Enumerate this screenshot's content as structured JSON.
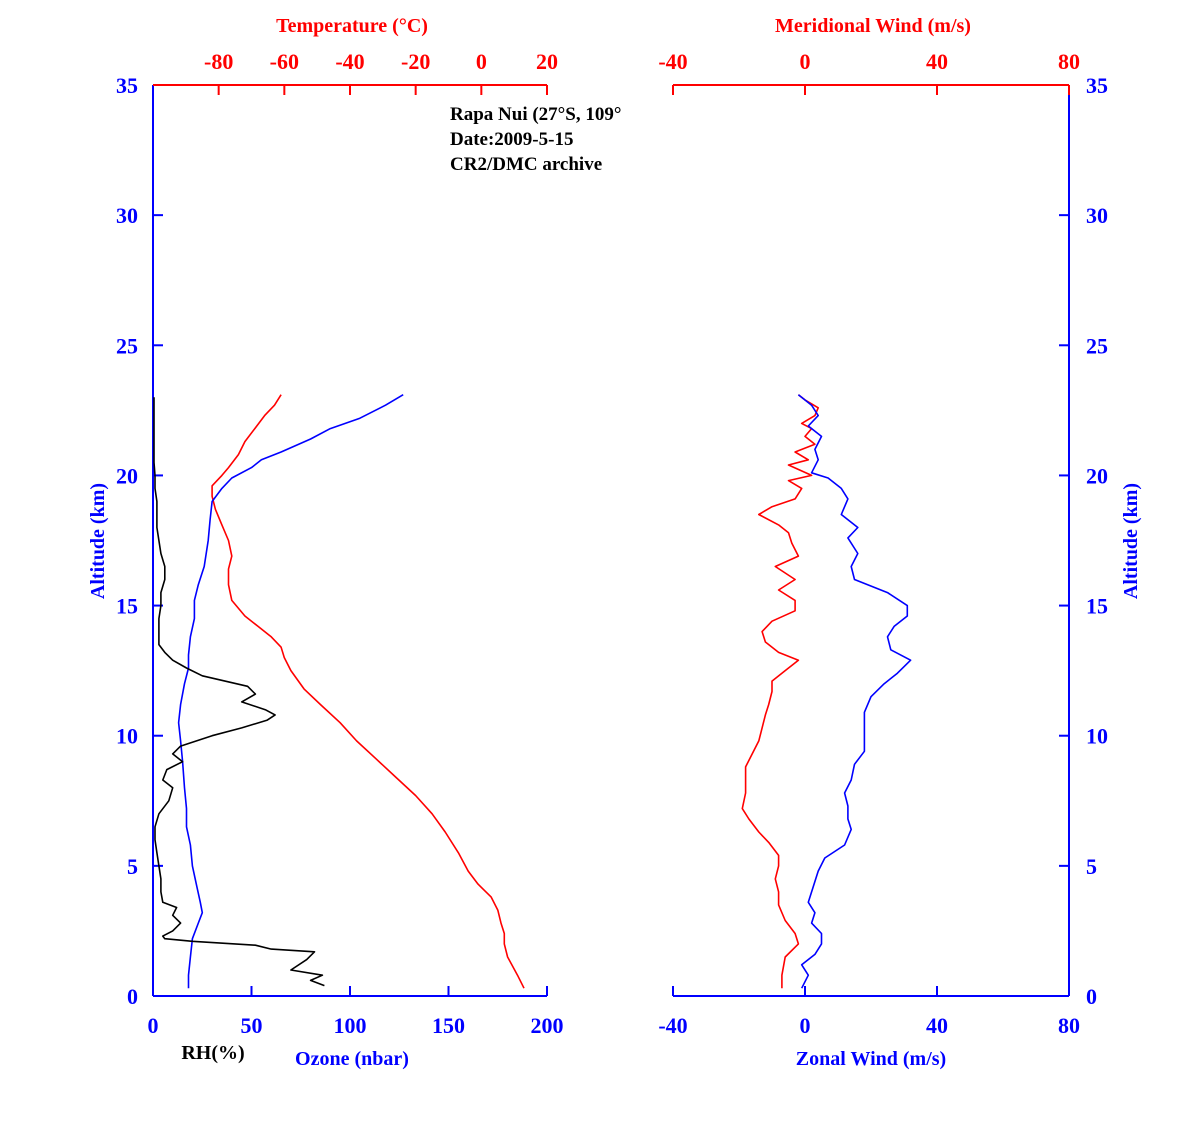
{
  "annotation": {
    "line1": "Rapa Nui (27°S, 109°",
    "line2": "Date:2009-5-15",
    "line3": "CR2/DMC archive"
  },
  "colors": {
    "blue": "#0000ff",
    "red": "#ff0000",
    "black": "#000000"
  },
  "chart_data": [
    {
      "type": "line",
      "panel": "left",
      "ylabel": "Altitude (km)",
      "ylim": [
        0,
        35
      ],
      "yticks": [
        "0",
        "5",
        "10",
        "15",
        "20",
        "25",
        "30",
        "35"
      ],
      "top_axis": {
        "label": "Temperature (°C)",
        "lim": [
          -100,
          20
        ],
        "ticks": [
          "-80",
          "-60",
          "-40",
          "-20",
          "0",
          "20"
        ]
      },
      "bottom_axis": {
        "label_rh": "RH(%)",
        "label_ozone": "Ozone (nbar)",
        "lim": [
          0,
          200
        ],
        "ticks": [
          "0",
          "50",
          "100",
          "150",
          "200"
        ]
      },
      "series": [
        {
          "axis": "top",
          "color": "red",
          "points": [
            [
              13,
              0.3
            ],
            [
              11,
              0.8
            ],
            [
              8,
              1.5
            ],
            [
              7,
              2.0
            ],
            [
              7,
              2.4
            ],
            [
              6,
              2.8
            ],
            [
              5,
              3.3
            ],
            [
              3,
              3.8
            ],
            [
              -1,
              4.3
            ],
            [
              -4,
              4.8
            ],
            [
              -7,
              5.5
            ],
            [
              -11,
              6.3
            ],
            [
              -15,
              7.0
            ],
            [
              -20,
              7.7
            ],
            [
              -26,
              8.4
            ],
            [
              -32,
              9.1
            ],
            [
              -38,
              9.8
            ],
            [
              -43,
              10.5
            ],
            [
              -49,
              11.2
            ],
            [
              -54,
              11.8
            ],
            [
              -58,
              12.5
            ],
            [
              -60,
              13.0
            ],
            [
              -61,
              13.4
            ],
            [
              -64,
              13.8
            ],
            [
              -68,
              14.2
            ],
            [
              -72,
              14.6
            ],
            [
              -76,
              15.2
            ],
            [
              -77,
              15.8
            ],
            [
              -77,
              16.4
            ],
            [
              -76,
              16.9
            ],
            [
              -77,
              17.5
            ],
            [
              -79,
              18.1
            ],
            [
              -81,
              18.7
            ],
            [
              -82,
              19.2
            ],
            [
              -82,
              19.6
            ],
            [
              -79,
              20.0
            ],
            [
              -77,
              20.3
            ],
            [
              -74,
              20.8
            ],
            [
              -72,
              21.3
            ],
            [
              -69,
              21.8
            ],
            [
              -66,
              22.3
            ],
            [
              -63,
              22.7
            ],
            [
              -61,
              23.1
            ]
          ]
        },
        {
          "axis": "bottom",
          "color": "blue",
          "points": [
            [
              18,
              0.3
            ],
            [
              18,
              0.8
            ],
            [
              19,
              1.5
            ],
            [
              20,
              2.2
            ],
            [
              23,
              2.8
            ],
            [
              25,
              3.2
            ],
            [
              24,
              3.6
            ],
            [
              22,
              4.3
            ],
            [
              20,
              5.0
            ],
            [
              19,
              5.8
            ],
            [
              17,
              6.5
            ],
            [
              17,
              7.2
            ],
            [
              16,
              8.0
            ],
            [
              15,
              9.0
            ],
            [
              14,
              9.8
            ],
            [
              13,
              10.5
            ],
            [
              14,
              11.2
            ],
            [
              16,
              12.0
            ],
            [
              18,
              12.6
            ],
            [
              18,
              13.1
            ],
            [
              19,
              13.8
            ],
            [
              21,
              14.5
            ],
            [
              21,
              15.2
            ],
            [
              23,
              15.8
            ],
            [
              26,
              16.5
            ],
            [
              28,
              17.5
            ],
            [
              29,
              18.3
            ],
            [
              30,
              19.0
            ],
            [
              35,
              19.5
            ],
            [
              40,
              19.9
            ],
            [
              50,
              20.3
            ],
            [
              55,
              20.6
            ],
            [
              65,
              20.9
            ],
            [
              80,
              21.4
            ],
            [
              90,
              21.8
            ],
            [
              105,
              22.2
            ],
            [
              118,
              22.7
            ],
            [
              127,
              23.1
            ]
          ]
        },
        {
          "axis": "bottom",
          "color": "black",
          "points": [
            [
              87,
              0.4
            ],
            [
              80,
              0.6
            ],
            [
              86,
              0.8
            ],
            [
              70,
              1.0
            ],
            [
              78,
              1.4
            ],
            [
              82,
              1.7
            ],
            [
              60,
              1.8
            ],
            [
              52,
              1.95
            ],
            [
              20,
              2.1
            ],
            [
              6,
              2.2
            ],
            [
              5,
              2.3
            ],
            [
              10,
              2.5
            ],
            [
              14,
              2.8
            ],
            [
              10,
              3.1
            ],
            [
              12,
              3.4
            ],
            [
              5,
              3.6
            ],
            [
              4,
              4.0
            ],
            [
              4,
              4.5
            ],
            [
              3,
              5.0
            ],
            [
              2,
              5.5
            ],
            [
              1,
              6.0
            ],
            [
              1,
              6.5
            ],
            [
              3,
              7.0
            ],
            [
              8,
              7.5
            ],
            [
              10,
              8.0
            ],
            [
              5,
              8.3
            ],
            [
              7,
              8.7
            ],
            [
              15,
              9.0
            ],
            [
              10,
              9.3
            ],
            [
              14,
              9.6
            ],
            [
              30,
              10.0
            ],
            [
              45,
              10.3
            ],
            [
              58,
              10.6
            ],
            [
              62,
              10.8
            ],
            [
              57,
              11.0
            ],
            [
              45,
              11.3
            ],
            [
              52,
              11.6
            ],
            [
              48,
              11.9
            ],
            [
              25,
              12.3
            ],
            [
              17,
              12.6
            ],
            [
              10,
              12.9
            ],
            [
              6,
              13.2
            ],
            [
              3,
              13.5
            ],
            [
              3,
              14.0
            ],
            [
              3,
              14.5
            ],
            [
              4,
              15.0
            ],
            [
              4,
              15.5
            ],
            [
              6,
              16.0
            ],
            [
              6,
              16.5
            ],
            [
              4,
              17.0
            ],
            [
              3,
              17.5
            ],
            [
              2,
              18.0
            ],
            [
              2,
              18.5
            ],
            [
              2,
              19.0
            ],
            [
              1,
              19.5
            ],
            [
              1,
              20.0
            ],
            [
              0.5,
              20.5
            ],
            [
              0.5,
              21.0
            ],
            [
              0.5,
              22.0
            ],
            [
              0.5,
              23.0
            ]
          ]
        }
      ]
    },
    {
      "type": "line",
      "panel": "right",
      "ylabel": "Altitude (km)",
      "ylim": [
        0,
        35
      ],
      "yticks": [
        "0",
        "5",
        "10",
        "15",
        "20",
        "25",
        "30",
        "35"
      ],
      "top_axis": {
        "label": "Meridional Wind (m/s)",
        "lim": [
          -40,
          80
        ],
        "ticks": [
          "-40",
          "0",
          "40",
          "80"
        ]
      },
      "bottom_axis": {
        "label": "Zonal Wind (m/s)",
        "lim": [
          -40,
          80
        ],
        "ticks": [
          "-40",
          "0",
          "40",
          "80"
        ]
      },
      "series": [
        {
          "axis": "top",
          "color": "red",
          "points": [
            [
              -7,
              0.3
            ],
            [
              -7,
              0.8
            ],
            [
              -6,
              1.5
            ],
            [
              -2,
              2.0
            ],
            [
              -3,
              2.4
            ],
            [
              -6,
              2.9
            ],
            [
              -8,
              3.5
            ],
            [
              -8,
              4.0
            ],
            [
              -9,
              4.5
            ],
            [
              -8,
              5.0
            ],
            [
              -8,
              5.4
            ],
            [
              -11,
              5.9
            ],
            [
              -14,
              6.3
            ],
            [
              -17,
              6.8
            ],
            [
              -19,
              7.2
            ],
            [
              -18,
              7.8
            ],
            [
              -18,
              8.3
            ],
            [
              -18,
              8.8
            ],
            [
              -16,
              9.3
            ],
            [
              -14,
              9.8
            ],
            [
              -13,
              10.3
            ],
            [
              -12,
              10.8
            ],
            [
              -11,
              11.2
            ],
            [
              -10,
              11.7
            ],
            [
              -10,
              12.1
            ],
            [
              -6,
              12.5
            ],
            [
              -2,
              12.9
            ],
            [
              -8,
              13.2
            ],
            [
              -12,
              13.6
            ],
            [
              -13,
              14.0
            ],
            [
              -10,
              14.4
            ],
            [
              -3,
              14.8
            ],
            [
              -3,
              15.2
            ],
            [
              -8,
              15.6
            ],
            [
              -3,
              16.0
            ],
            [
              -9,
              16.5
            ],
            [
              -2,
              16.9
            ],
            [
              -4,
              17.4
            ],
            [
              -5,
              17.8
            ],
            [
              -8,
              18.1
            ],
            [
              -14,
              18.5
            ],
            [
              -10,
              18.8
            ],
            [
              -3,
              19.1
            ],
            [
              -1,
              19.5
            ],
            [
              -5,
              19.8
            ],
            [
              2,
              20.0
            ],
            [
              -5,
              20.4
            ],
            [
              1,
              20.6
            ],
            [
              -3,
              20.9
            ],
            [
              3,
              21.2
            ],
            [
              0,
              21.5
            ],
            [
              2,
              21.8
            ],
            [
              -1,
              22.0
            ],
            [
              3,
              22.3
            ],
            [
              4,
              22.6
            ],
            [
              0,
              22.9
            ],
            [
              -2,
              23.1
            ]
          ]
        },
        {
          "axis": "bottom",
          "color": "blue",
          "points": [
            [
              -1,
              0.3
            ],
            [
              1,
              0.8
            ],
            [
              -1,
              1.2
            ],
            [
              3,
              1.6
            ],
            [
              5,
              2.0
            ],
            [
              5,
              2.4
            ],
            [
              2,
              2.8
            ],
            [
              3,
              3.2
            ],
            [
              1,
              3.6
            ],
            [
              2,
              4.0
            ],
            [
              3,
              4.4
            ],
            [
              4,
              4.8
            ],
            [
              6,
              5.3
            ],
            [
              12,
              5.8
            ],
            [
              14,
              6.4
            ],
            [
              13,
              6.8
            ],
            [
              13,
              7.3
            ],
            [
              12,
              7.8
            ],
            [
              14,
              8.3
            ],
            [
              15,
              8.9
            ],
            [
              18,
              9.4
            ],
            [
              18,
              10.0
            ],
            [
              18,
              10.5
            ],
            [
              18,
              10.9
            ],
            [
              20,
              11.5
            ],
            [
              24,
              12.0
            ],
            [
              28,
              12.4
            ],
            [
              32,
              12.9
            ],
            [
              26,
              13.3
            ],
            [
              25,
              13.8
            ],
            [
              27,
              14.2
            ],
            [
              31,
              14.6
            ],
            [
              31,
              15.0
            ],
            [
              25,
              15.5
            ],
            [
              15,
              16.0
            ],
            [
              14,
              16.5
            ],
            [
              16,
              17.0
            ],
            [
              13,
              17.6
            ],
            [
              16,
              18.0
            ],
            [
              11,
              18.5
            ],
            [
              13,
              19.1
            ],
            [
              11,
              19.5
            ],
            [
              7,
              19.9
            ],
            [
              2,
              20.1
            ],
            [
              4,
              20.6
            ],
            [
              3,
              21.0
            ],
            [
              5,
              21.5
            ],
            [
              1,
              21.9
            ],
            [
              4,
              22.3
            ],
            [
              2,
              22.7
            ],
            [
              -2,
              23.1
            ]
          ]
        }
      ]
    }
  ]
}
